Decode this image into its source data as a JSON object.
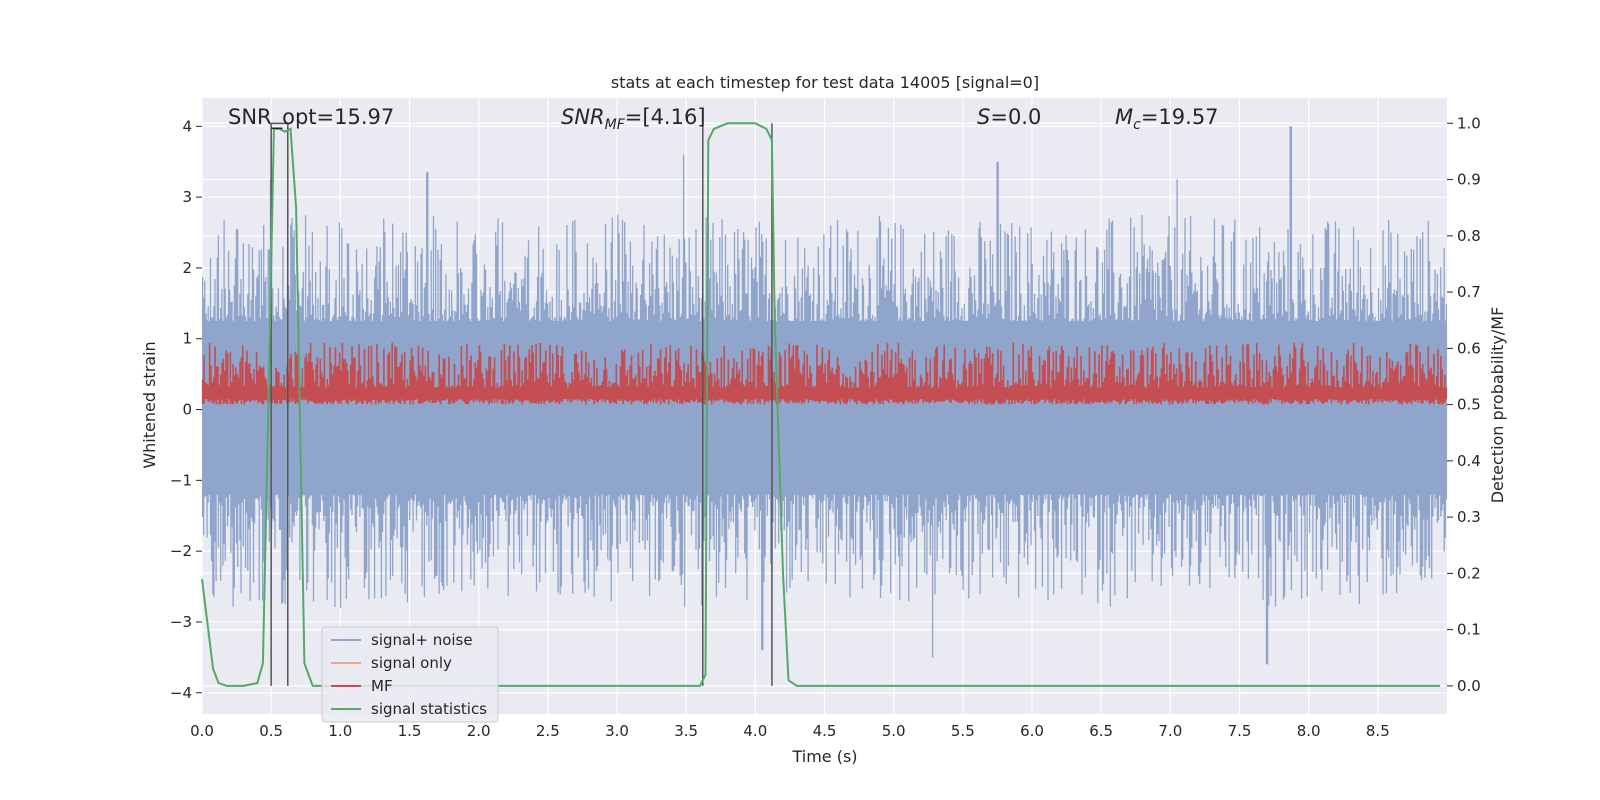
{
  "chart_data": {
    "type": "line",
    "title": "stats at each timestep for test data 14005 [signal=0]",
    "xlabel": "Time (s)",
    "ylabel": "Whitened strain",
    "ylabel_right": "Detection probability/MF",
    "xlim": [
      0.0,
      9.0
    ],
    "ylim": [
      -4.3,
      4.4
    ],
    "ylim_right": [
      -0.05,
      1.045
    ],
    "x_ticks": [
      "0.0",
      "0.5",
      "1.0",
      "1.5",
      "2.0",
      "2.5",
      "3.0",
      "3.5",
      "4.0",
      "4.5",
      "5.0",
      "5.5",
      "6.0",
      "6.5",
      "7.0",
      "7.5",
      "8.0",
      "8.5"
    ],
    "y_ticks": [
      "4",
      "3",
      "2",
      "1",
      "0",
      "−1",
      "−2",
      "−3",
      "−4"
    ],
    "y_right_ticks": [
      "1.0",
      "0.9",
      "0.8",
      "0.7",
      "0.6",
      "0.5",
      "0.4",
      "0.3",
      "0.2",
      "0.1",
      "0.0"
    ],
    "grid": true,
    "legend_position": "lower-left",
    "annotations": {
      "snr_opt": "SNR_opt=15.97",
      "snr_mf_base": "SNR",
      "snr_mf_sub": "MF",
      "snr_mf_rest": "=[4.16]",
      "s_base": "S",
      "s_rest": "=0.0",
      "mc_base": "M",
      "mc_sub": "c",
      "mc_rest": "=19.57"
    },
    "series": [
      {
        "name": "signal+ noise",
        "color": "#8fa5cc",
        "description_envelope": {
          "upper_typical": [
            1.2,
            2.6
          ],
          "lower_typical": [
            -1.2,
            -2.8
          ],
          "spike_peaks": [
            [
              0.5,
              3.25
            ],
            [
              1.63,
              3.35
            ],
            [
              3.48,
              3.6
            ],
            [
              5.75,
              3.5
            ],
            [
              7.05,
              3.25
            ],
            [
              7.87,
              4.0
            ],
            [
              5.28,
              -3.5
            ],
            [
              7.7,
              -3.6
            ],
            [
              4.05,
              -3.4
            ]
          ]
        }
      },
      {
        "name": "signal only",
        "color": "#e8a98f",
        "values": []
      },
      {
        "name": "MF",
        "color": "#c44e52",
        "axis": "right",
        "band": [
          0.5,
          0.6
        ]
      },
      {
        "name": "signal statistics",
        "color": "#55a868",
        "axis": "right",
        "x": [
          0.0,
          0.08,
          0.12,
          0.18,
          0.3,
          0.4,
          0.44,
          0.48,
          0.52,
          0.56,
          0.6,
          0.64,
          0.68,
          0.74,
          0.8,
          0.9,
          1.5,
          2.5,
          3.5,
          3.6,
          3.64,
          3.66,
          3.7,
          3.8,
          4.0,
          4.08,
          4.12,
          4.14,
          4.2,
          4.24,
          4.3,
          5.0,
          6.0,
          7.0,
          8.0,
          8.95
        ],
        "y": [
          0.19,
          0.03,
          0.005,
          0.0,
          0.0,
          0.005,
          0.04,
          0.5,
          0.99,
          0.99,
          0.985,
          0.99,
          0.85,
          0.04,
          0.0,
          0.0,
          0.0,
          0.0,
          0.0,
          0.0,
          0.02,
          0.97,
          0.99,
          1.0,
          1.0,
          0.99,
          0.97,
          0.65,
          0.2,
          0.01,
          0.0,
          0.0,
          0.0,
          0.0,
          0.0,
          0.0
        ]
      }
    ],
    "vertical_markers_x": [
      0.5,
      0.62,
      3.62,
      4.12
    ],
    "legend_entries": [
      "signal+ noise",
      "signal only",
      "MF",
      "signal statistics"
    ]
  }
}
